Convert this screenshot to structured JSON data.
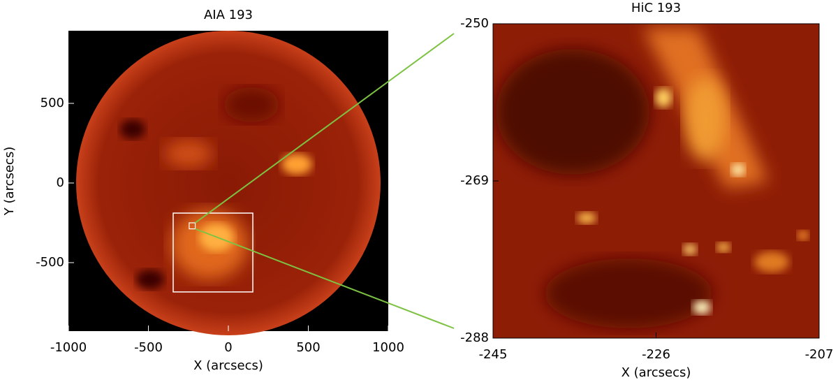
{
  "chart_data": [
    {
      "type": "image",
      "title": "AIA 193",
      "xlabel": "X (arcsecs)",
      "ylabel": "Y (arcsecs)",
      "xlim": [
        -1000,
        1000
      ],
      "ylim": [
        -930,
        956
      ],
      "xticks": [
        -1000,
        -500,
        0,
        500,
        1000
      ],
      "yticks": [
        -500,
        0,
        500
      ],
      "boxes": [
        {
          "xlim": [
            -345,
            153
          ],
          "ylim": [
            -684,
            -189
          ],
          "color": "#ffffff"
        }
      ]
    },
    {
      "type": "image",
      "title": "HiC 193",
      "xlabel": "X (arcsecs)",
      "xlim": [
        -245,
        -207
      ],
      "ylim": [
        -288,
        -250
      ],
      "xticks": [
        -245,
        -226,
        -207
      ],
      "yticks": [
        -288,
        -269,
        -250
      ],
      "zoom_color": "#7dc242"
    }
  ]
}
